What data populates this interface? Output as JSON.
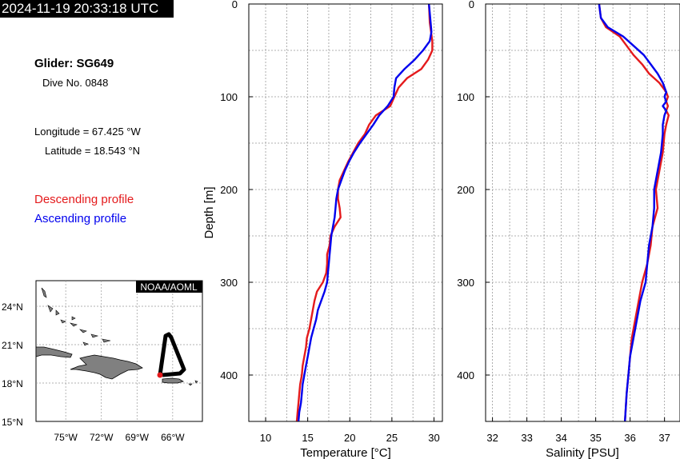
{
  "timestamp": "2024-11-19 20:33:18 UTC",
  "info": {
    "glider": "Glider: SG649",
    "dive": "Dive No. 0848",
    "longitude": "Longitude = 67.425 °W",
    "latitude": "Latitude = 18.543 °N"
  },
  "legend": {
    "descending": "Descending profile",
    "ascending": "Ascending profile"
  },
  "colors": {
    "descending": "#e41a1c",
    "ascending": "#0000ee"
  },
  "map": {
    "credit": "NOAA/AOML",
    "lat_ticks": [
      "24°N",
      "21°N",
      "18°N",
      "15°N"
    ],
    "lon_ticks": [
      "75°W",
      "72°W",
      "69°W",
      "66°W"
    ]
  },
  "chart_data": [
    {
      "type": "line",
      "xlabel": "Temperature [°C]",
      "ylabel": "Depth [m]",
      "xlim": [
        8,
        31
      ],
      "ylim": [
        450,
        0
      ],
      "xticks": [
        10,
        15,
        20,
        25,
        30
      ],
      "yticks": [
        0,
        100,
        200,
        300,
        400
      ],
      "grid": true,
      "series": [
        {
          "name": "Descending profile",
          "depth": [
            0,
            20,
            40,
            50,
            60,
            70,
            80,
            90,
            100,
            110,
            120,
            130,
            140,
            150,
            160,
            170,
            180,
            190,
            200,
            210,
            220,
            230,
            240,
            250,
            260,
            270,
            280,
            290,
            300,
            310,
            320,
            330,
            340,
            350,
            360,
            370,
            380,
            390,
            400,
            410,
            420,
            430,
            440,
            450
          ],
          "values": [
            29.4,
            29.5,
            29.8,
            29.8,
            29.3,
            28.5,
            26.8,
            25.8,
            25.3,
            24.8,
            23.1,
            22.3,
            21.8,
            21.0,
            20.4,
            19.8,
            19.3,
            18.8,
            18.6,
            18.6,
            18.8,
            18.9,
            18.2,
            17.7,
            17.6,
            17.3,
            17.3,
            17.2,
            16.8,
            16.1,
            15.8,
            15.6,
            15.4,
            15.2,
            14.9,
            14.8,
            14.6,
            14.4,
            14.3,
            14.1,
            14.0,
            13.9,
            13.8,
            13.7
          ]
        },
        {
          "name": "Ascending profile",
          "depth": [
            0,
            20,
            30,
            40,
            50,
            60,
            70,
            80,
            90,
            100,
            110,
            120,
            130,
            140,
            150,
            160,
            170,
            180,
            190,
            200,
            210,
            220,
            230,
            240,
            250,
            260,
            270,
            280,
            290,
            300,
            310,
            320,
            330,
            340,
            350,
            360,
            370,
            380,
            390,
            400,
            410,
            420,
            430,
            440,
            450
          ],
          "values": [
            29.4,
            29.6,
            29.7,
            29.5,
            28.7,
            27.7,
            26.5,
            25.5,
            25.3,
            25.2,
            24.5,
            23.5,
            22.8,
            22.0,
            21.2,
            20.5,
            19.9,
            19.4,
            19.0,
            18.6,
            18.4,
            18.3,
            18.2,
            18.0,
            17.8,
            17.7,
            17.6,
            17.5,
            17.4,
            17.3,
            17.0,
            16.6,
            16.2,
            16.0,
            15.7,
            15.4,
            15.2,
            15.0,
            14.8,
            14.6,
            14.4,
            14.3,
            14.2,
            14.0,
            13.9
          ]
        }
      ]
    },
    {
      "type": "line",
      "xlabel": "Salinity [PSU]",
      "ylabel": "",
      "xlim": [
        31.8,
        37.45
      ],
      "ylim": [
        450,
        0
      ],
      "xticks": [
        32,
        33,
        34,
        35,
        36,
        37
      ],
      "yticks": [
        0,
        100,
        200,
        300,
        400
      ],
      "grid": true,
      "series": [
        {
          "name": "Descending profile",
          "depth": [
            0,
            15,
            25,
            35,
            45,
            55,
            65,
            75,
            85,
            95,
            100,
            105,
            110,
            115,
            120,
            130,
            140,
            160,
            180,
            200,
            220,
            240,
            260,
            280,
            300,
            320,
            340,
            360,
            380,
            400,
            420,
            450
          ],
          "values": [
            35.1,
            35.15,
            35.3,
            35.7,
            35.9,
            36.1,
            36.35,
            36.55,
            36.85,
            37.05,
            37.1,
            37.05,
            37.1,
            37.05,
            37.12,
            37.05,
            37.0,
            36.95,
            36.85,
            36.75,
            36.8,
            36.65,
            36.6,
            36.5,
            36.35,
            36.25,
            36.15,
            36.05,
            36.0,
            35.95,
            35.9,
            35.85
          ]
        },
        {
          "name": "Ascending profile",
          "depth": [
            0,
            15,
            25,
            35,
            45,
            55,
            65,
            75,
            85,
            95,
            100,
            105,
            110,
            115,
            120,
            130,
            140,
            160,
            180,
            200,
            220,
            240,
            260,
            280,
            300,
            320,
            340,
            360,
            380,
            400,
            420,
            450
          ],
          "values": [
            35.1,
            35.15,
            35.35,
            35.8,
            36.1,
            36.4,
            36.6,
            36.8,
            36.95,
            37.05,
            37.0,
            37.05,
            36.95,
            37.05,
            37.0,
            36.95,
            36.95,
            36.9,
            36.8,
            36.7,
            36.7,
            36.65,
            36.55,
            36.5,
            36.45,
            36.3,
            36.2,
            36.1,
            36.0,
            35.95,
            35.9,
            35.85
          ]
        }
      ]
    }
  ]
}
